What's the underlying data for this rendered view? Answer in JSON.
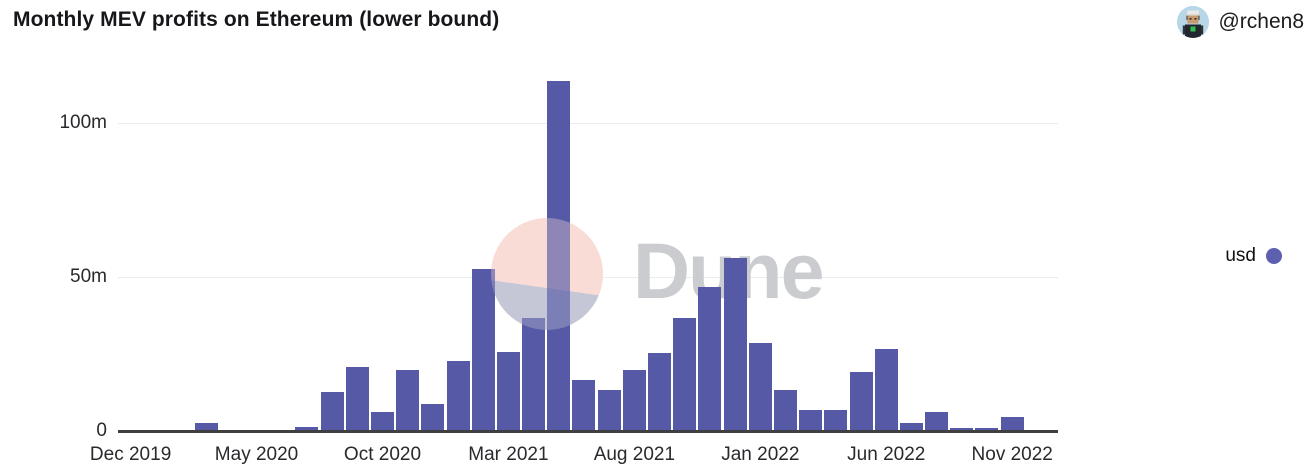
{
  "header": {
    "title": "Monthly MEV profits on Ethereum (lower bound)",
    "handle": "@rchen8"
  },
  "legend": {
    "label": "usd",
    "dot_color": "#5c60ae"
  },
  "watermark": {
    "text": "Dune"
  },
  "chart_data": {
    "type": "bar",
    "title": "Monthly MEV profits on Ethereum (lower bound)",
    "series_name": "usd",
    "values_unit": "million USD",
    "bar_color": "#565aa6",
    "grid": "horizontal",
    "legend_position": "right",
    "ylim": [
      0,
      120
    ],
    "yticks": [
      {
        "value": 0,
        "label": "0"
      },
      {
        "value": 50,
        "label": "50m"
      },
      {
        "value": 100,
        "label": "100m"
      }
    ],
    "x_tick_every": 5,
    "x_tick_labels": [
      "Dec 2019",
      "May 2020",
      "Oct 2020",
      "Mar 2021",
      "Aug 2021",
      "Jan 2022",
      "Jun 2022",
      "Nov 2022"
    ],
    "categories": [
      "Dec 2019",
      "Jan 2020",
      "Feb 2020",
      "Mar 2020",
      "Apr 2020",
      "May 2020",
      "Jun 2020",
      "Jul 2020",
      "Aug 2020",
      "Sep 2020",
      "Oct 2020",
      "Nov 2020",
      "Dec 2020",
      "Jan 2021",
      "Feb 2021",
      "Mar 2021",
      "Apr 2021",
      "May 2021",
      "Jun 2021",
      "Jul 2021",
      "Aug 2021",
      "Sep 2021",
      "Oct 2021",
      "Nov 2021",
      "Dec 2021",
      "Jan 2022",
      "Feb 2022",
      "Mar 2022",
      "Apr 2022",
      "May 2022",
      "Jun 2022",
      "Jul 2022",
      "Aug 2022",
      "Sep 2022",
      "Oct 2022",
      "Nov 2022",
      "Dec 2022"
    ],
    "values": [
      0,
      0,
      0,
      3,
      0,
      0,
      0.5,
      1.5,
      13,
      21,
      6.5,
      20,
      9,
      23,
      53,
      26,
      37,
      114,
      17,
      13.5,
      20,
      25.5,
      37,
      47,
      56.5,
      29,
      13.5,
      7,
      7,
      19.5,
      27,
      3,
      6.5,
      1.3,
      1.4,
      5,
      0.5
    ]
  }
}
